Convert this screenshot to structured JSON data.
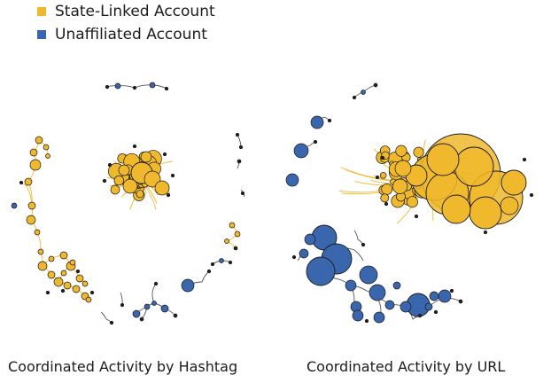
{
  "legend": {
    "items": [
      {
        "label": "State-Linked Account",
        "color": "#f0b92d"
      },
      {
        "label": "Unaffiliated Account",
        "color": "#3a66ae"
      }
    ]
  },
  "colors": {
    "edge": "#555555",
    "node_stroke": "#1a1a1a"
  },
  "panels": {
    "hashtag": {
      "title": "Coordinated Activity by Hashtag"
    },
    "url": {
      "title": "Coordinated Activity by URL"
    }
  }
}
